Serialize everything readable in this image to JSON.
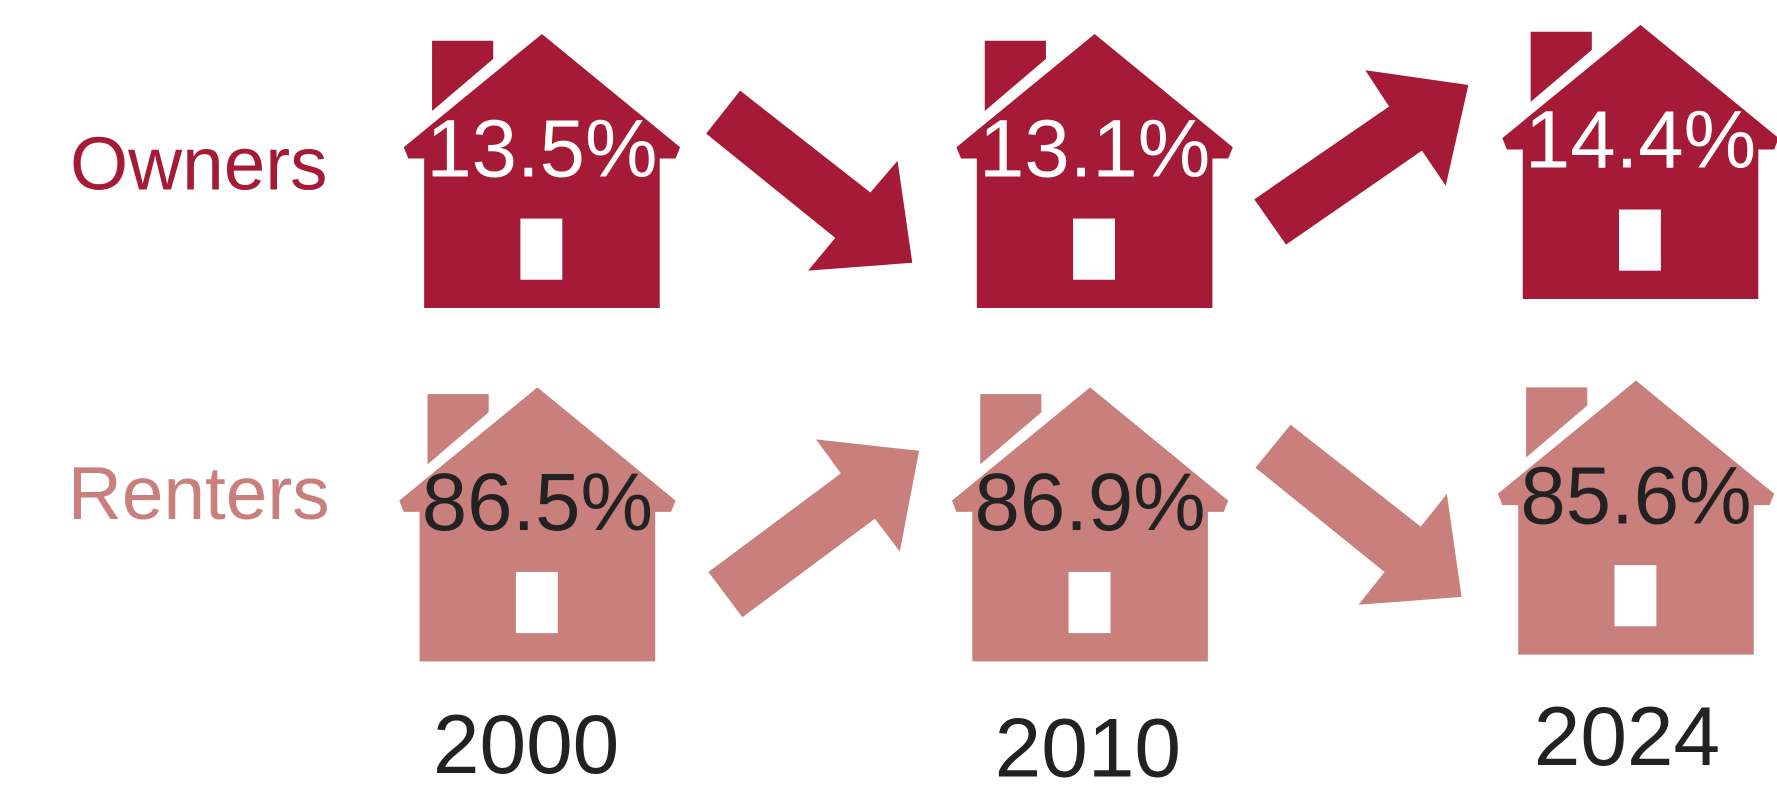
{
  "rows": [
    {
      "label": "Owners",
      "values": [
        "13.5%",
        "13.1%",
        "14.4%"
      ]
    },
    {
      "label": "Renters",
      "values": [
        "86.5%",
        "86.9%",
        "85.6%"
      ]
    }
  ],
  "years": [
    "2000",
    "2010",
    "2024"
  ]
}
